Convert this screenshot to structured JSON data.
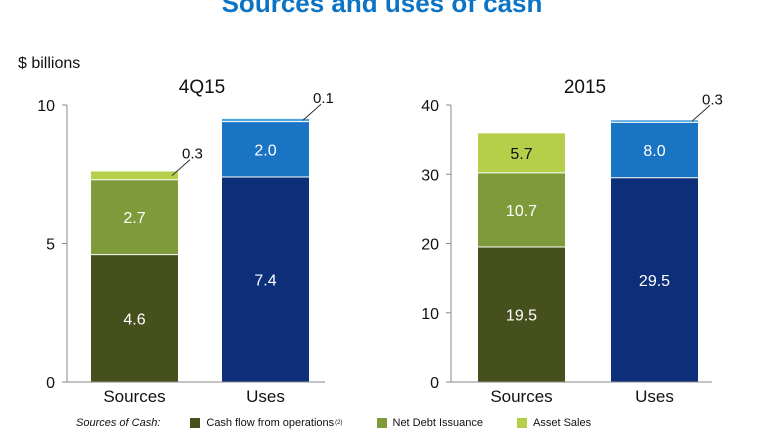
{
  "page": {
    "title": "Sources and uses of cash",
    "unit": "$ billions"
  },
  "colors": {
    "cash_flow_from_operations": "#46501c",
    "net_debt_issuance": "#7f9a3a",
    "asset_sales": "#b6cf4a",
    "uses_lower": "#0d2f7a",
    "uses_upper": "#1a74c4",
    "uses_top": "#4fa3de"
  },
  "legend": {
    "prefix": "Sources of Cash:",
    "items": [
      {
        "label": "Cash flow from operations",
        "superscript": "(2)",
        "color_key": "cash_flow_from_operations"
      },
      {
        "label": "Net Debt Issuance",
        "superscript": "",
        "color_key": "net_debt_issuance"
      },
      {
        "label": "Asset Sales",
        "superscript": "",
        "color_key": "asset_sales"
      }
    ]
  },
  "chart_data": [
    {
      "type": "bar",
      "stacked": true,
      "title": "4Q15",
      "categories": [
        "Sources",
        "Uses"
      ],
      "ylim": [
        0,
        10
      ],
      "yticks": [
        0,
        5,
        10
      ],
      "bars": [
        {
          "category": "Sources",
          "segments": [
            {
              "series": "Cash flow from operations",
              "value": 4.6,
              "label": "4.6",
              "color_key": "cash_flow_from_operations",
              "label_color": "#ffffff",
              "callout": false
            },
            {
              "series": "Net Debt Issuance",
              "value": 2.7,
              "label": "2.7",
              "color_key": "net_debt_issuance",
              "label_color": "#ffffff",
              "callout": false
            },
            {
              "series": "Asset Sales",
              "value": 0.3,
              "label": "0.3",
              "color_key": "asset_sales",
              "label_color": "#111111",
              "callout": true
            }
          ]
        },
        {
          "category": "Uses",
          "segments": [
            {
              "value": 7.4,
              "label": "7.4",
              "color_key": "uses_lower",
              "label_color": "#ffffff",
              "callout": false
            },
            {
              "value": 2.0,
              "label": "2.0",
              "color_key": "uses_upper",
              "label_color": "#ffffff",
              "callout": false
            },
            {
              "value": 0.1,
              "label": "0.1",
              "color_key": "uses_top",
              "label_color": "#111111",
              "callout": true
            }
          ]
        }
      ]
    },
    {
      "type": "bar",
      "stacked": true,
      "title": "2015",
      "categories": [
        "Sources",
        "Uses"
      ],
      "ylim": [
        0,
        40
      ],
      "yticks": [
        0,
        10,
        20,
        30,
        40
      ],
      "bars": [
        {
          "category": "Sources",
          "segments": [
            {
              "series": "Cash flow from operations",
              "value": 19.5,
              "label": "19.5",
              "color_key": "cash_flow_from_operations",
              "label_color": "#ffffff",
              "callout": false
            },
            {
              "series": "Net Debt Issuance",
              "value": 10.7,
              "label": "10.7",
              "color_key": "net_debt_issuance",
              "label_color": "#ffffff",
              "callout": false
            },
            {
              "series": "Asset Sales",
              "value": 5.7,
              "label": "5.7",
              "color_key": "asset_sales",
              "label_color": "#111111",
              "callout": false
            }
          ]
        },
        {
          "category": "Uses",
          "segments": [
            {
              "value": 29.5,
              "label": "29.5",
              "color_key": "uses_lower",
              "label_color": "#ffffff",
              "callout": false
            },
            {
              "value": 8.0,
              "label": "8.0",
              "color_key": "uses_upper",
              "label_color": "#ffffff",
              "callout": false
            },
            {
              "value": 0.3,
              "label": "0.3",
              "color_key": "uses_top",
              "label_color": "#111111",
              "callout": true
            }
          ]
        }
      ]
    }
  ]
}
